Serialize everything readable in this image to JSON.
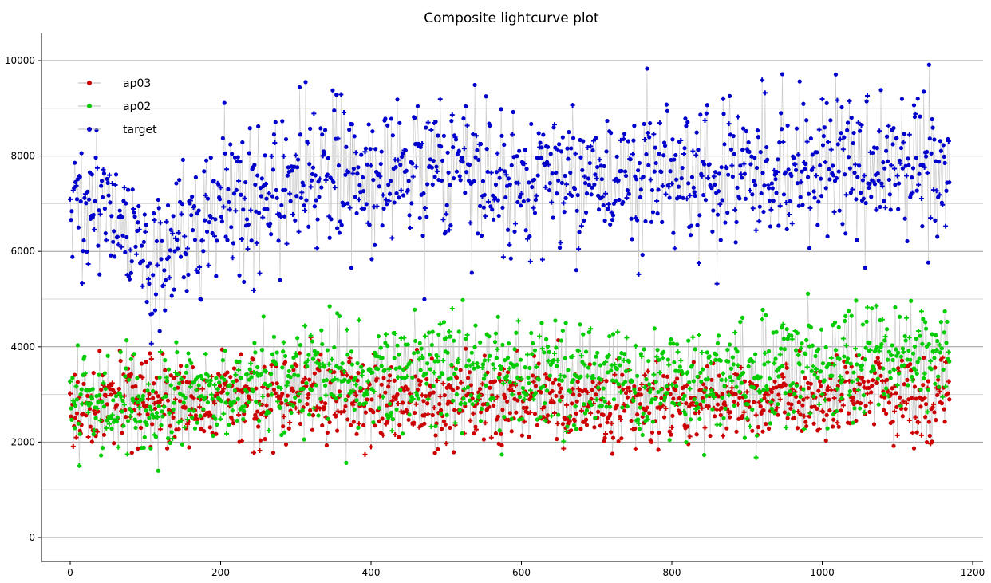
{
  "chart_data": {
    "type": "scatter",
    "title": "Composite lightcurve plot",
    "xlabel": "",
    "ylabel": "",
    "xlim": [
      0,
      1200
    ],
    "ylim": [
      0,
      10000
    ],
    "x_ticks": [
      0,
      200,
      400,
      600,
      800,
      1000,
      1200
    ],
    "y_ticks": [
      0,
      2000,
      4000,
      6000,
      8000,
      10000
    ],
    "grid": "horizontal",
    "legend_position": "top-left",
    "point_count": 1170,
    "series": [
      {
        "name": "ap03",
        "color": "#cc0000",
        "typical_range": [
          1700,
          4600
        ],
        "mean": 2900,
        "anchors": [
          [
            0,
            2700
          ],
          [
            100,
            2800
          ],
          [
            300,
            2950
          ],
          [
            600,
            2800
          ],
          [
            900,
            2850
          ],
          [
            1000,
            2950
          ],
          [
            1170,
            2900
          ]
        ]
      },
      {
        "name": "ap02",
        "color": "#00cc00",
        "typical_range": [
          1350,
          5350
        ],
        "mean": 3300,
        "anchors": [
          [
            0,
            3000
          ],
          [
            100,
            2700
          ],
          [
            150,
            2900
          ],
          [
            300,
            3400
          ],
          [
            500,
            3600
          ],
          [
            700,
            3300
          ],
          [
            900,
            3350
          ],
          [
            1100,
            3800
          ],
          [
            1170,
            3900
          ]
        ]
      },
      {
        "name": "target",
        "color": "#0000cc",
        "typical_range": [
          4050,
          10070
        ],
        "mean": 7500,
        "anchors": [
          [
            0,
            7200
          ],
          [
            50,
            7000
          ],
          [
            80,
            6200
          ],
          [
            100,
            5600
          ],
          [
            120,
            5800
          ],
          [
            140,
            6500
          ],
          [
            200,
            6800
          ],
          [
            250,
            7300
          ],
          [
            300,
            7600
          ],
          [
            400,
            7700
          ],
          [
            500,
            7700
          ],
          [
            600,
            7600
          ],
          [
            700,
            7500
          ],
          [
            800,
            7600
          ],
          [
            900,
            7500
          ],
          [
            1000,
            7900
          ],
          [
            1100,
            7800
          ],
          [
            1170,
            7700
          ]
        ]
      }
    ]
  }
}
